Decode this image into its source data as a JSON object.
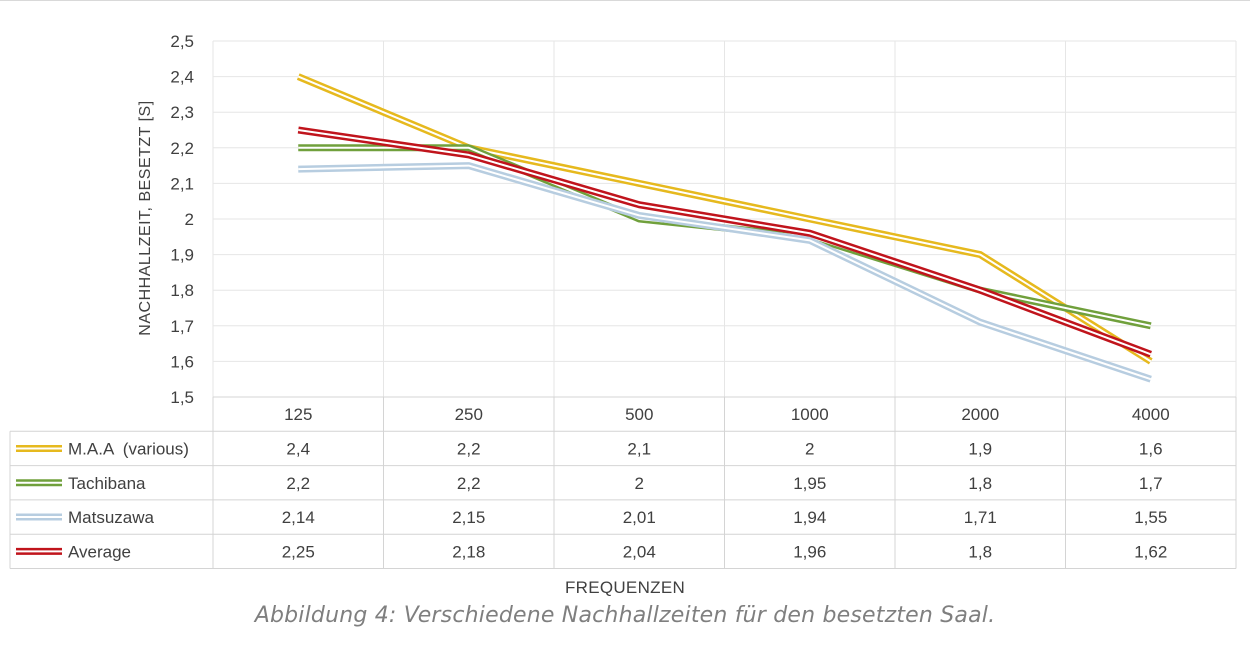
{
  "chart_data": {
    "type": "line",
    "xlabel": "FREQUENZEN",
    "ylabel": "NACHHALLZEIT, BESETZT [S]",
    "categories": [
      "125",
      "250",
      "500",
      "1000",
      "2000",
      "4000"
    ],
    "ylim": [
      1.5,
      2.5
    ],
    "yticks": [
      "1,5",
      "1,6",
      "1,7",
      "1,8",
      "1,9",
      "2",
      "2,1",
      "2,2",
      "2,3",
      "2,4",
      "2,5"
    ],
    "grid": true,
    "legend": "data-table",
    "series": [
      {
        "name": "M.A.A  (various)",
        "color": "#e6b91e",
        "values": [
          2.4,
          2.2,
          2.1,
          2,
          1.9,
          1.6
        ],
        "labels": [
          "2,4",
          "2,2",
          "2,1",
          "2",
          "1,9",
          "1,6"
        ]
      },
      {
        "name": "Tachibana",
        "color": "#70a03c",
        "values": [
          2.2,
          2.2,
          2,
          1.95,
          1.8,
          1.7
        ],
        "labels": [
          "2,2",
          "2,2",
          "2",
          "1,95",
          "1,8",
          "1,7"
        ]
      },
      {
        "name": "Matsuzawa",
        "color": "#b7cde0",
        "values": [
          2.14,
          2.15,
          2.01,
          1.94,
          1.71,
          1.55
        ],
        "labels": [
          "2,14",
          "2,15",
          "2,01",
          "1,94",
          "1,71",
          "1,55"
        ]
      },
      {
        "name": "Average",
        "color": "#c0141c",
        "values": [
          2.25,
          2.18,
          2.04,
          1.96,
          1.8,
          1.62
        ],
        "labels": [
          "2,25",
          "2,18",
          "2,04",
          "1,96",
          "1,8",
          "1,62"
        ]
      }
    ]
  },
  "caption": "Abbildung 4: Verschiedene Nachhallzeiten für den besetzten Saal."
}
